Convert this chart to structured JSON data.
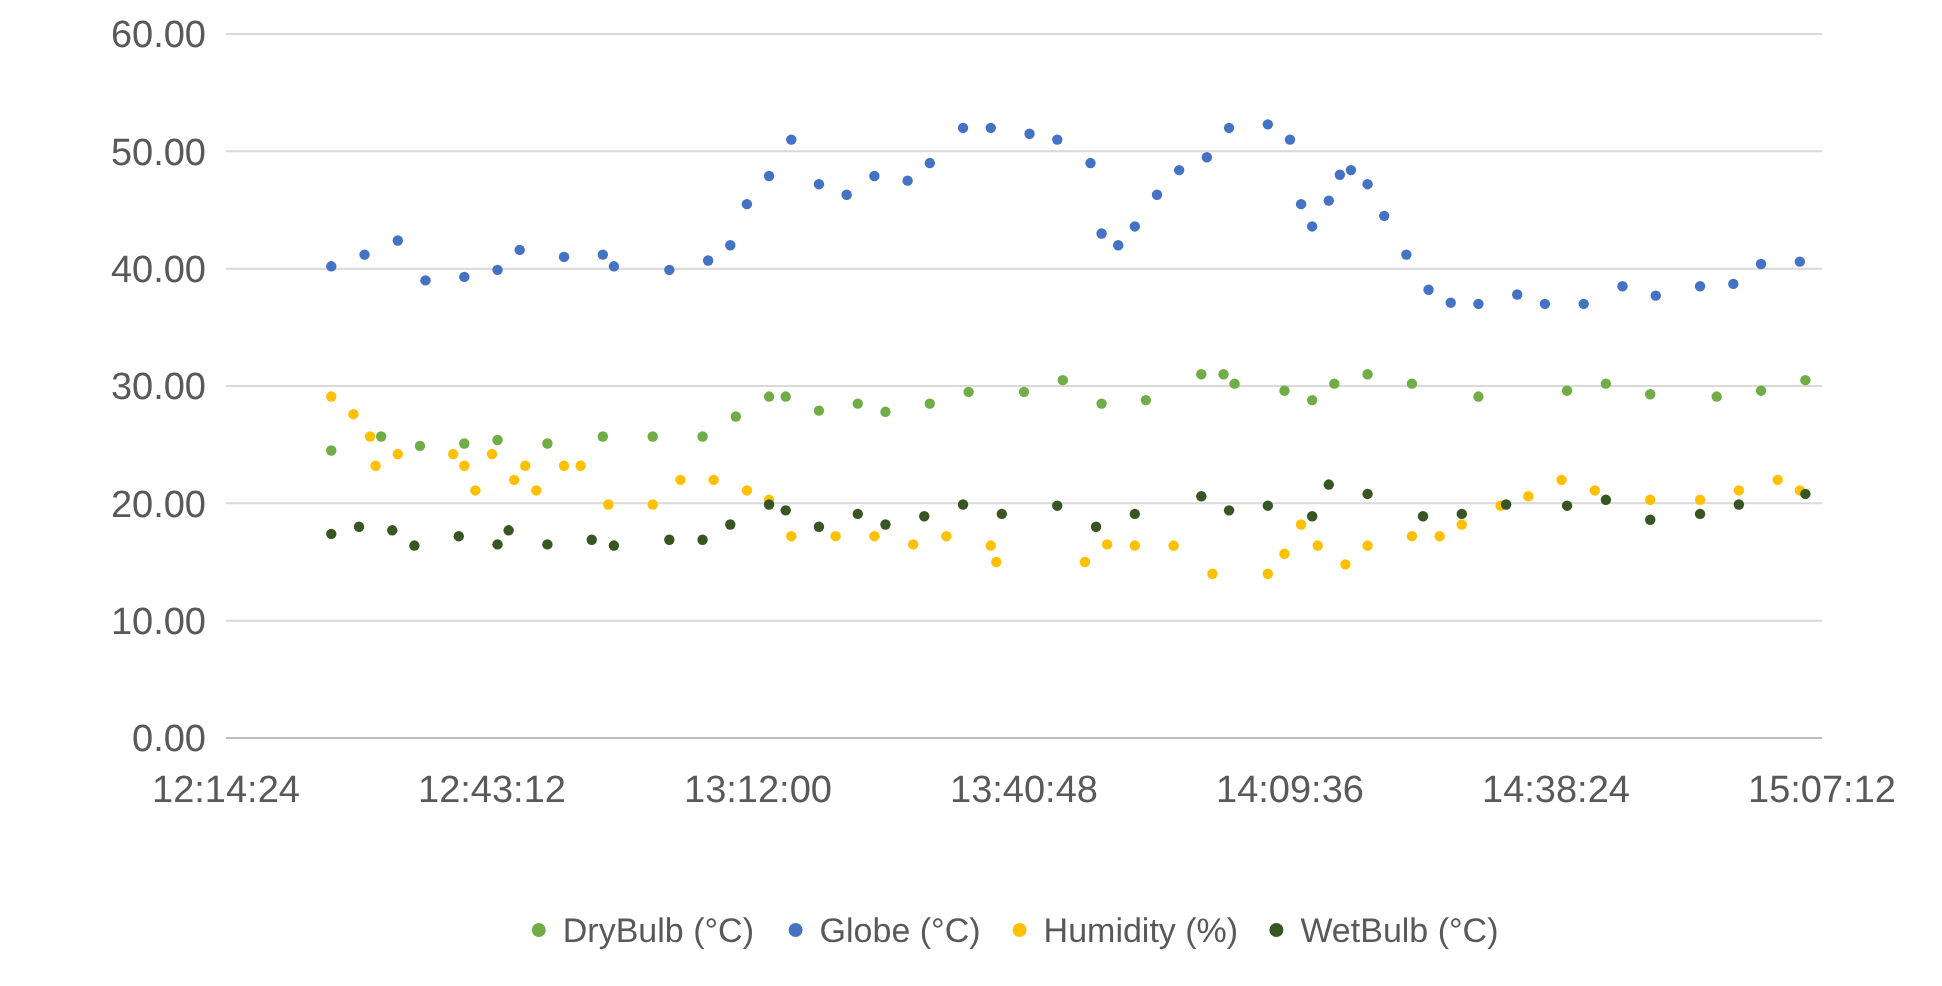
{
  "chart_data": {
    "type": "scatter",
    "xlim": [
      12.24,
      15.12
    ],
    "ylim": [
      0,
      60
    ],
    "xticks": [
      {
        "value": 12.24,
        "label": "12:14:24"
      },
      {
        "value": 12.72,
        "label": "12:43:12"
      },
      {
        "value": 13.2,
        "label": "13:12:00"
      },
      {
        "value": 13.68,
        "label": "13:40:48"
      },
      {
        "value": 14.16,
        "label": "14:09:36"
      },
      {
        "value": 14.64,
        "label": "14:38:24"
      },
      {
        "value": 15.12,
        "label": "15:07:12"
      }
    ],
    "yticks": [
      {
        "value": 0,
        "label": "0.00"
      },
      {
        "value": 10,
        "label": "10.00"
      },
      {
        "value": 20,
        "label": "20.00"
      },
      {
        "value": 30,
        "label": "30.00"
      },
      {
        "value": 40,
        "label": "40.00"
      },
      {
        "value": 50,
        "label": "50.00"
      },
      {
        "value": 60,
        "label": "60.00"
      }
    ],
    "grid": "y",
    "legend": "bottom",
    "marker": "circle",
    "series": [
      {
        "name": "DryBulb (°C)",
        "color": "#70ad47",
        "x": [
          12.43,
          12.52,
          12.59,
          12.67,
          12.73,
          12.82,
          12.92,
          13.01,
          13.1,
          13.16,
          13.22,
          13.25,
          13.31,
          13.38,
          13.43,
          13.51,
          13.58,
          13.68,
          13.75,
          13.82,
          13.9,
          14.0,
          14.04,
          14.06,
          14.15,
          14.2,
          14.24,
          14.3,
          14.38,
          14.5,
          14.66,
          14.73,
          14.81,
          14.93,
          15.01,
          15.09
        ],
        "values": [
          24.5,
          25.7,
          24.9,
          25.1,
          25.4,
          25.1,
          25.7,
          25.7,
          25.7,
          27.4,
          29.1,
          29.1,
          27.9,
          28.5,
          27.8,
          28.5,
          29.5,
          29.5,
          30.5,
          28.5,
          28.8,
          31,
          31,
          30.2,
          29.6,
          28.8,
          30.2,
          31,
          30.2,
          29.1,
          29.6,
          30.2,
          29.3,
          29.1,
          29.6,
          30.5
        ]
      },
      {
        "name": "Globe (°C)",
        "color": "#4472c4",
        "x": [
          12.43,
          12.49,
          12.55,
          12.6,
          12.67,
          12.73,
          12.77,
          12.85,
          12.92,
          12.94,
          13.04,
          13.11,
          13.15,
          13.18,
          13.22,
          13.26,
          13.31,
          13.36,
          13.41,
          13.47,
          13.51,
          13.57,
          13.62,
          13.69,
          13.74,
          13.8,
          13.82,
          13.85,
          13.88,
          13.92,
          13.96,
          14.01,
          14.05,
          14.12,
          14.16,
          14.18,
          14.2,
          14.23,
          14.25,
          14.27,
          14.3,
          14.33,
          14.37,
          14.41,
          14.45,
          14.5,
          14.57,
          14.62,
          14.69,
          14.76,
          14.82,
          14.9,
          14.96,
          15.01,
          15.08
        ],
        "values": [
          40.2,
          41.2,
          42.4,
          39,
          39.3,
          39.9,
          41.6,
          41,
          41.2,
          40.2,
          39.9,
          40.7,
          42,
          45.5,
          47.9,
          51,
          47.2,
          46.3,
          47.9,
          47.5,
          49,
          52,
          52,
          51.5,
          51,
          49,
          43,
          42,
          43.6,
          46.3,
          48.4,
          49.5,
          52,
          52.3,
          51,
          45.5,
          43.6,
          45.8,
          48,
          48.4,
          47.2,
          44.5,
          41.2,
          38.2,
          37.1,
          37,
          37.8,
          37,
          37,
          38.5,
          37.7,
          38.5,
          38.7,
          40.4,
          40.6
        ]
      },
      {
        "name": "Humidity (%)",
        "color": "#ffc000",
        "x": [
          12.43,
          12.47,
          12.5,
          12.51,
          12.55,
          12.65,
          12.67,
          12.69,
          12.72,
          12.76,
          12.78,
          12.8,
          12.85,
          12.88,
          12.93,
          13.01,
          13.06,
          13.12,
          13.18,
          13.22,
          13.26,
          13.34,
          13.41,
          13.48,
          13.54,
          13.62,
          13.63,
          13.79,
          13.83,
          13.88,
          13.95,
          14.02,
          14.12,
          14.15,
          14.18,
          14.21,
          14.26,
          14.3,
          14.38,
          14.43,
          14.47,
          14.54,
          14.59,
          14.65,
          14.71,
          14.81,
          14.9,
          14.97,
          15.04,
          15.08
        ],
        "values": [
          29.1,
          27.6,
          25.7,
          23.2,
          24.2,
          24.2,
          23.2,
          21.1,
          24.2,
          22,
          23.2,
          21.1,
          23.2,
          23.2,
          19.9,
          19.9,
          22,
          22,
          21.1,
          20.3,
          17.2,
          17.2,
          17.2,
          16.5,
          17.2,
          16.4,
          15,
          15,
          16.5,
          16.4,
          16.4,
          14,
          14,
          15.7,
          18.2,
          16.4,
          14.8,
          16.4,
          17.2,
          17.2,
          18.2,
          19.8,
          20.6,
          22,
          21.1,
          20.3,
          20.3,
          21.1,
          22,
          21.1
        ]
      },
      {
        "name": "WetBulb (°C)",
        "color": "#375623",
        "x": [
          12.43,
          12.48,
          12.54,
          12.58,
          12.66,
          12.73,
          12.75,
          12.82,
          12.9,
          12.94,
          13.04,
          13.1,
          13.15,
          13.22,
          13.25,
          13.31,
          13.38,
          13.43,
          13.5,
          13.57,
          13.64,
          13.74,
          13.81,
          13.88,
          14.0,
          14.05,
          14.12,
          14.2,
          14.23,
          14.3,
          14.4,
          14.47,
          14.55,
          14.66,
          14.73,
          14.81,
          14.9,
          14.97,
          15.09
        ],
        "values": [
          17.4,
          18,
          17.7,
          16.4,
          17.2,
          16.5,
          17.7,
          16.5,
          16.9,
          16.4,
          16.9,
          16.9,
          18.2,
          19.9,
          19.4,
          18,
          19.1,
          18.2,
          18.9,
          19.9,
          19.1,
          19.8,
          18,
          19.1,
          20.6,
          19.4,
          19.8,
          18.9,
          21.6,
          20.8,
          18.9,
          19.1,
          19.9,
          19.8,
          20.3,
          18.6,
          19.1,
          19.9,
          20.8
        ]
      }
    ]
  }
}
